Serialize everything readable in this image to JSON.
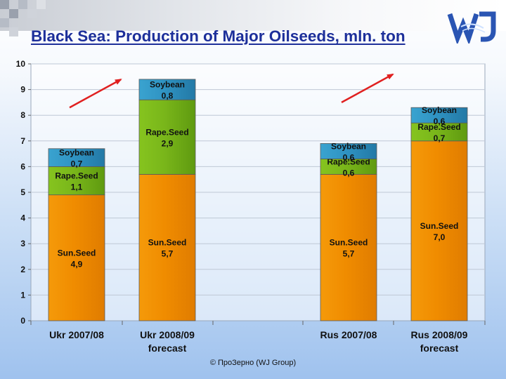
{
  "slide": {
    "title": "Black Sea: Production of Major Oilseeds, mln. ton",
    "copyright": "© ПроЗерно (WJ Group)",
    "logo_text": "WJ"
  },
  "colors": {
    "sunseed": "#f08c00",
    "rapeseed": "#79b61a",
    "soybean": "#2f93c2",
    "arrow": "#e02020",
    "title": "#1d2f9a"
  },
  "chart_data": {
    "type": "bar",
    "stacked": true,
    "title": "",
    "xlabel": "",
    "ylabel": "",
    "ylim": [
      0,
      10
    ],
    "yticks": [
      0,
      1,
      2,
      3,
      4,
      5,
      6,
      7,
      8,
      9,
      10
    ],
    "grid": true,
    "categories": [
      [
        "Ukr 2007/08"
      ],
      [
        "Ukr 2008/09",
        "forecast"
      ],
      [
        "Rus 2007/08"
      ],
      [
        "Rus 2008/09",
        "forecast"
      ]
    ],
    "series": [
      {
        "name": "Sun.Seed",
        "color_key": "sunseed",
        "values": [
          4.9,
          5.7,
          5.7,
          7.0
        ],
        "labels": [
          "4,9",
          "5,7",
          "5,7",
          "7,0"
        ]
      },
      {
        "name": "Rape.Seed",
        "color_key": "rapeseed",
        "values": [
          1.1,
          2.9,
          0.6,
          0.7
        ],
        "labels": [
          "1,1",
          "2,9",
          "0,6",
          "0,7"
        ]
      },
      {
        "name": "Soybean",
        "color_key": "soybean",
        "values": [
          0.7,
          0.8,
          0.6,
          0.6
        ],
        "labels": [
          "0,7",
          "0,8",
          "0,6",
          "0,6"
        ]
      }
    ],
    "annotations": [
      {
        "type": "arrow",
        "from_category": 0,
        "to_category": 1,
        "meaning": "growth"
      },
      {
        "type": "arrow",
        "from_category": 2,
        "to_category": 3,
        "meaning": "growth"
      }
    ]
  }
}
